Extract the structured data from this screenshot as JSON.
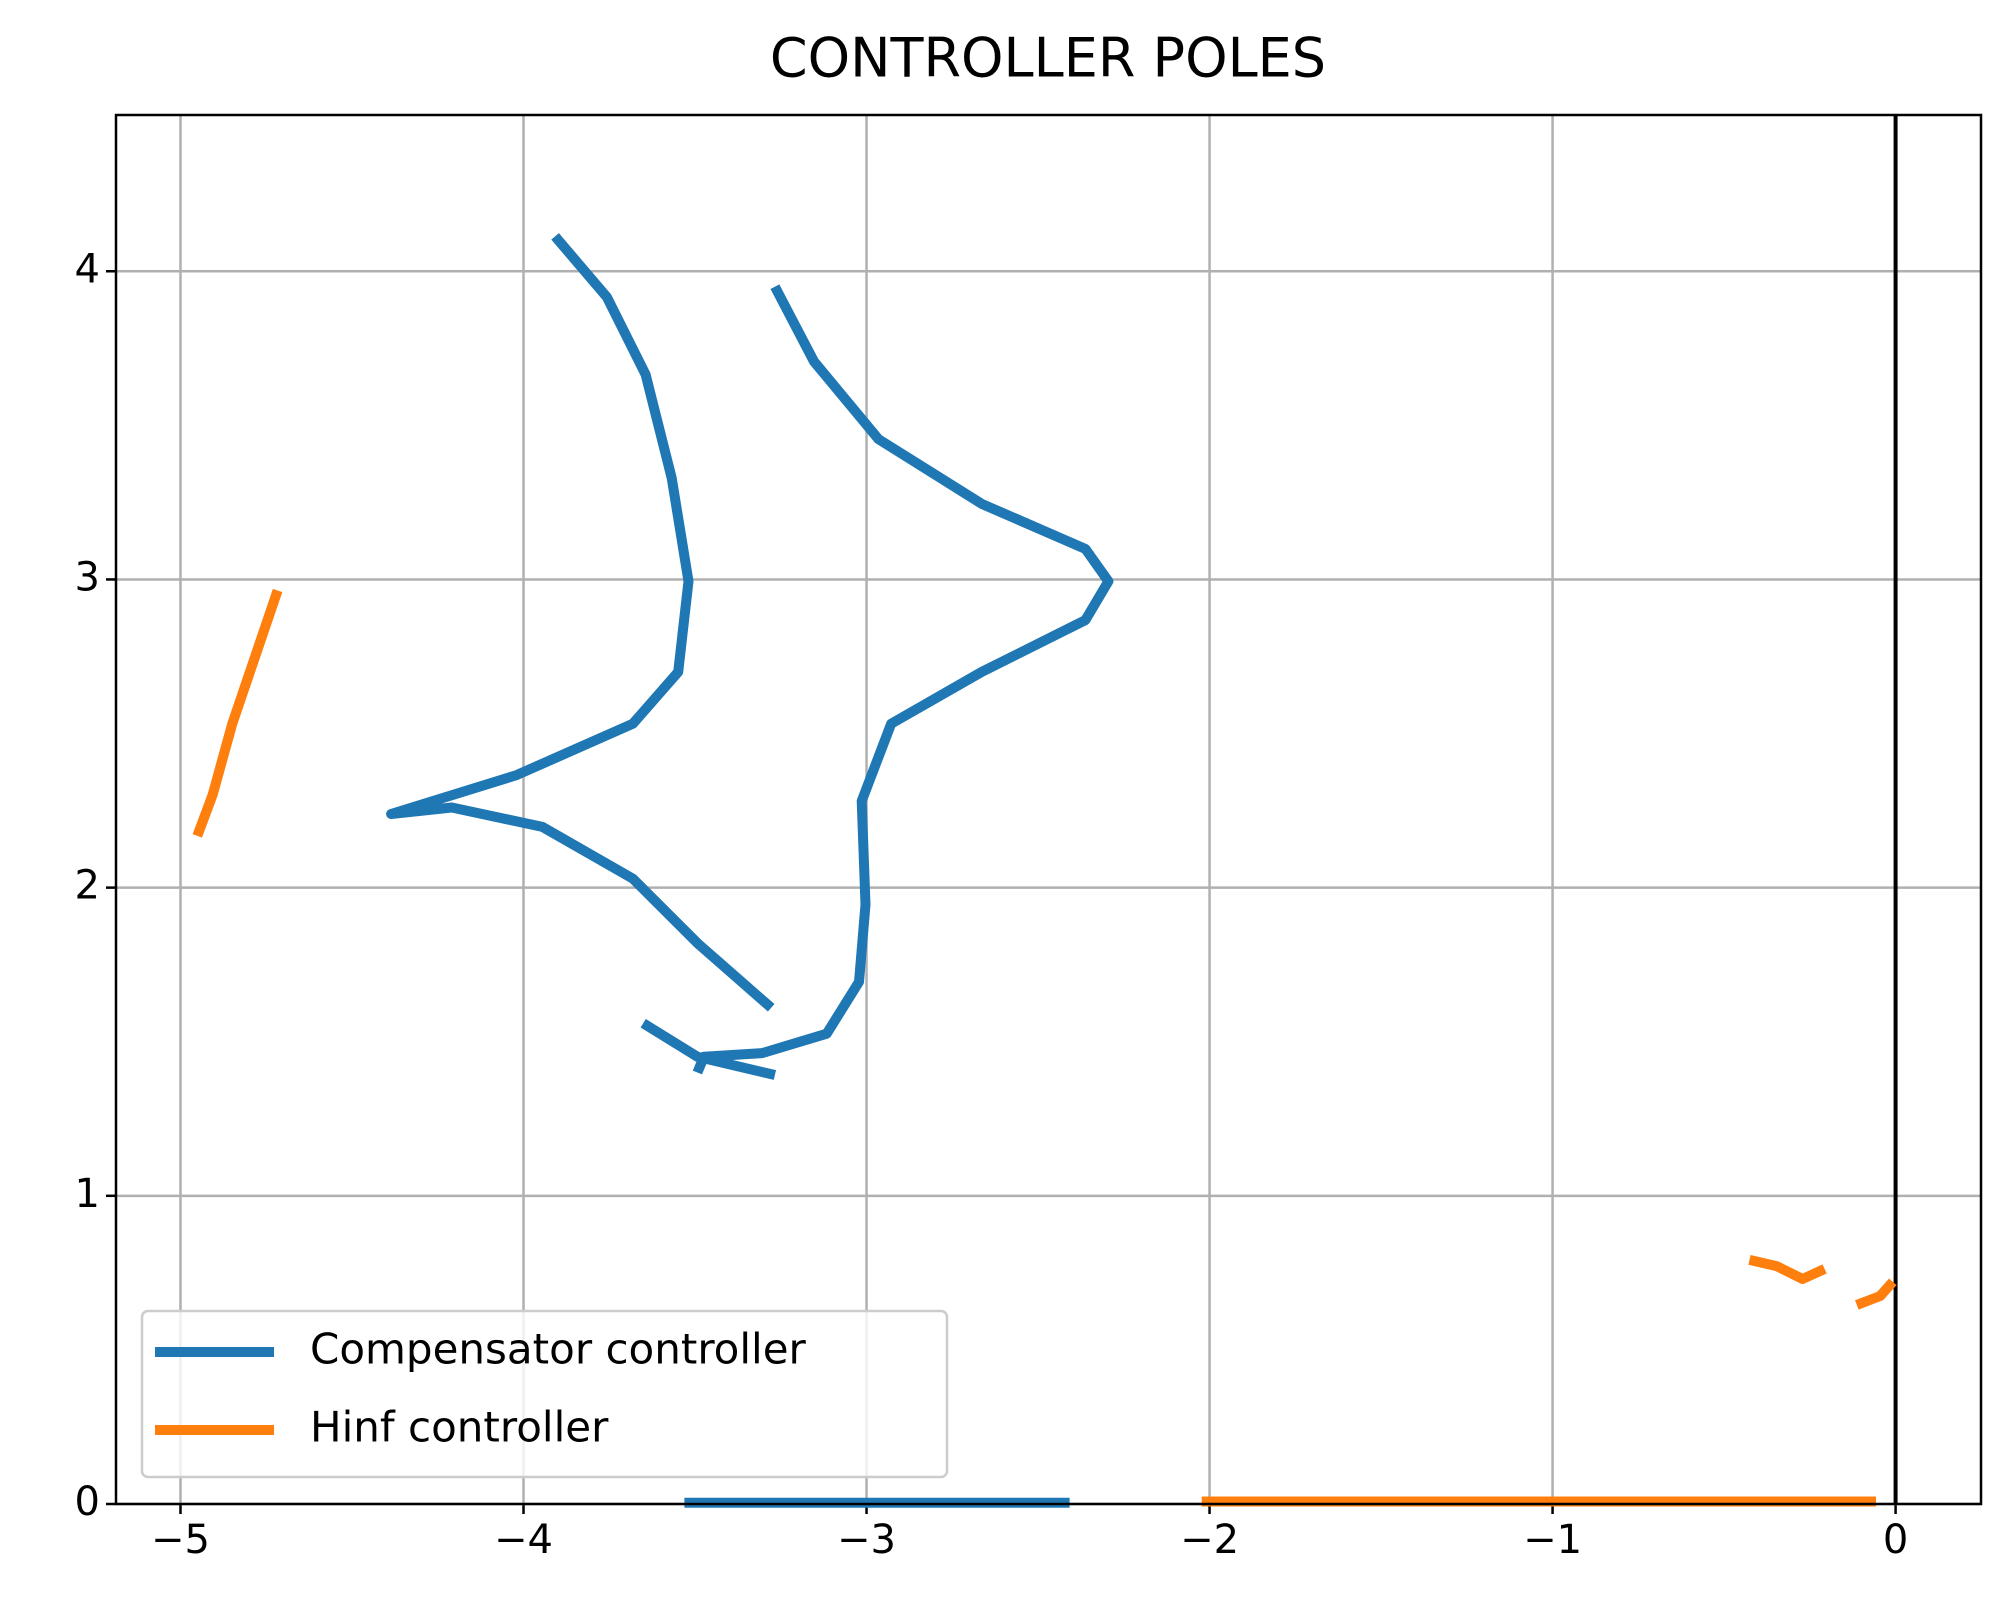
{
  "chart_data": {
    "type": "line",
    "title": "CONTROLLER POLES",
    "xlim": [
      -5.188,
      0.249
    ],
    "ylim": [
      0,
      4.507
    ],
    "xticks": [
      {
        "value": -5,
        "label": "−5"
      },
      {
        "value": -4,
        "label": "−4"
      },
      {
        "value": -3,
        "label": "−3"
      },
      {
        "value": -2,
        "label": "−2"
      },
      {
        "value": -1,
        "label": "−1"
      },
      0
    ],
    "yticks": [
      0,
      1,
      2,
      3,
      4
    ],
    "grid": true,
    "vlines": [
      0
    ],
    "legend": "lower left",
    "series": [
      {
        "name": "Compensator controller",
        "color": "#1f77b4",
        "x": [
          -3.908,
          -3.757,
          -3.644,
          -3.568,
          -3.519,
          -3.549,
          -3.681,
          -4.02,
          -4.386,
          -4.209,
          -3.945,
          -3.681,
          -3.493,
          -3.278,
          null,
          -3.267,
          -3.153,
          -2.965,
          -2.664,
          -2.362,
          -2.295,
          -2.362,
          -2.664,
          -2.928,
          -3.014,
          -3.003,
          -3.022,
          -3.116,
          -3.304,
          -3.474,
          -3.493,
          null,
          -3.651,
          -3.493,
          -3.267,
          null,
          -3.531,
          -2.408
        ],
        "values": [
          4.113,
          3.916,
          3.665,
          3.329,
          2.994,
          2.7,
          2.532,
          2.365,
          2.239,
          2.26,
          2.197,
          2.029,
          1.82,
          1.61,
          null,
          3.95,
          3.707,
          3.455,
          3.245,
          3.099,
          2.994,
          2.868,
          2.7,
          2.532,
          2.281,
          1.945,
          1.694,
          1.526,
          1.463,
          1.451,
          1.4,
          null,
          1.56,
          1.451,
          1.392,
          null,
          0.004,
          0.004
        ]
      },
      {
        "name": "Hinf controller",
        "color": "#ff7f0e",
        "x": [
          -4.717,
          -4.849,
          -4.906,
          -4.951,
          null,
          -0.426,
          -0.347,
          -0.271,
          -0.207,
          null,
          -0.113,
          -0.045,
          -0.008,
          null,
          -2.023,
          -0.057
        ],
        "values": [
          2.964,
          2.532,
          2.302,
          2.168,
          null,
          0.792,
          0.772,
          0.73,
          0.763,
          null,
          0.646,
          0.675,
          0.721,
          null,
          0.008,
          0.008
        ]
      }
    ]
  }
}
